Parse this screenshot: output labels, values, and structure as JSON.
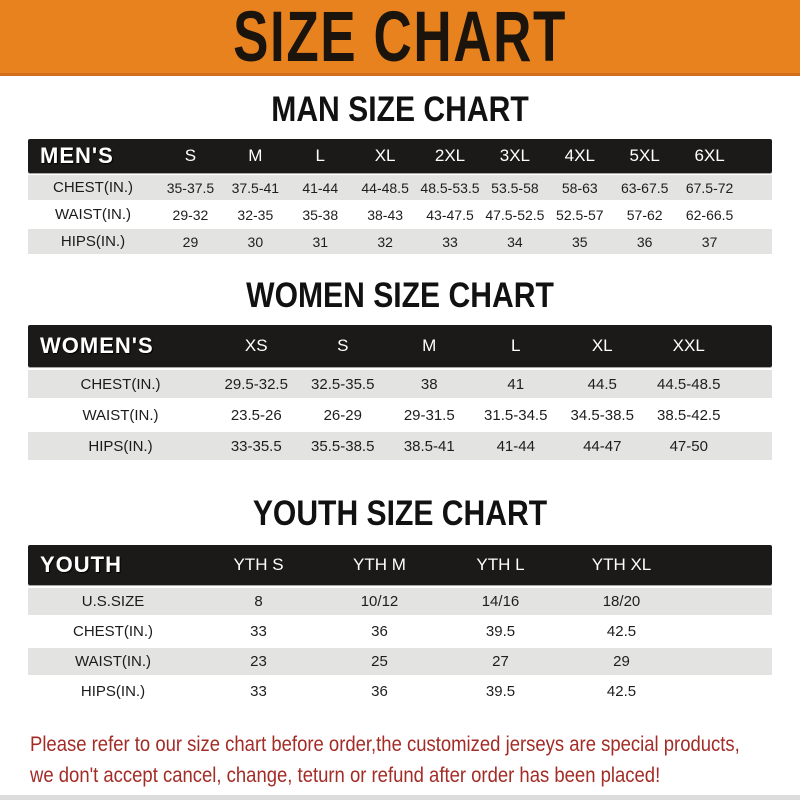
{
  "banner": {
    "title": "SIZE CHART"
  },
  "sections": [
    {
      "id": "men",
      "heading": "MAN SIZE CHART",
      "group_label": "MEN'S",
      "columns": [
        "S",
        "M",
        "L",
        "XL",
        "2XL",
        "3XL",
        "4XL",
        "5XL",
        "6XL"
      ],
      "rows": [
        {
          "label": "CHEST(IN.)",
          "values": [
            "35-37.5",
            "37.5-41",
            "41-44",
            "44-48.5",
            "48.5-53.5",
            "53.5-58",
            "58-63",
            "63-67.5",
            "67.5-72"
          ]
        },
        {
          "label": "WAIST(IN.)",
          "values": [
            "29-32",
            "32-35",
            "35-38",
            "38-43",
            "43-47.5",
            "47.5-52.5",
            "52.5-57",
            "57-62",
            "62-66.5"
          ]
        },
        {
          "label": "HIPS(IN.)",
          "values": [
            "29",
            "30",
            "31",
            "32",
            "33",
            "34",
            "35",
            "36",
            "37"
          ]
        }
      ]
    },
    {
      "id": "women",
      "heading": "WOMEN SIZE CHART",
      "group_label": "WOMEN'S",
      "columns": [
        "XS",
        "S",
        "M",
        "L",
        "XL",
        "XXL"
      ],
      "rows": [
        {
          "label": "CHEST(IN.)",
          "values": [
            "29.5-32.5",
            "32.5-35.5",
            "38",
            "41",
            "44.5",
            "44.5-48.5"
          ]
        },
        {
          "label": "WAIST(IN.)",
          "values": [
            "23.5-26",
            "26-29",
            "29-31.5",
            "31.5-34.5",
            "34.5-38.5",
            "38.5-42.5"
          ]
        },
        {
          "label": "HIPS(IN.)",
          "values": [
            "33-35.5",
            "35.5-38.5",
            "38.5-41",
            "41-44",
            "44-47",
            "47-50"
          ]
        }
      ]
    },
    {
      "id": "youth",
      "heading": "YOUTH SIZE CHART",
      "group_label": "YOUTH",
      "columns": [
        "YTH S",
        "YTH M",
        "YTH L",
        "YTH XL"
      ],
      "rows": [
        {
          "label": "U.S.SIZE",
          "values": [
            "8",
            "10/12",
            "14/16",
            "18/20"
          ]
        },
        {
          "label": "CHEST(IN.)",
          "values": [
            "33",
            "36",
            "39.5",
            "42.5"
          ]
        },
        {
          "label": "WAIST(IN.)",
          "values": [
            "23",
            "25",
            "27",
            "29"
          ]
        },
        {
          "label": "HIPS(IN.)",
          "values": [
            "33",
            "36",
            "39.5",
            "42.5"
          ]
        }
      ]
    }
  ],
  "footer": {
    "line1": "Please refer to our size chart before order,the customized jerseys are special products,",
    "line2": "we don't accept cancel, change, teturn or refund after order has been placed!"
  },
  "colors": {
    "banner_orange": "#E8821E",
    "bar_black": "#1C1A19",
    "row_gray": "#E3E3E2",
    "footer_red": "#A32C26",
    "title_black": "#1A140D"
  }
}
